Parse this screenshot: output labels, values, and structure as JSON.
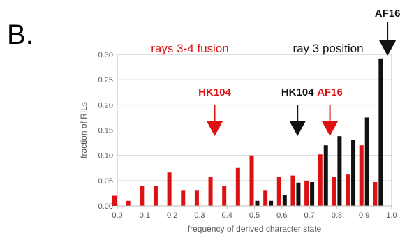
{
  "panel_label": "B.",
  "chart_data": {
    "type": "bar",
    "xlabel": "frequency of derived character state",
    "ylabel": "fraction of RILs",
    "ylim": [
      0,
      0.3
    ],
    "yticks": [
      "0.00",
      "0.05",
      "0.10",
      "0.15",
      "0.20",
      "0.25",
      "0.30"
    ],
    "xlim": [
      0,
      1
    ],
    "xticks": [
      "0.0",
      "0.1",
      "0.2",
      "0.3",
      "0.4",
      "0.5",
      "0.6",
      "0.7",
      "0.8",
      "0.9",
      "1.0"
    ],
    "grid": true,
    "series": [
      {
        "name": "rays 3-4 fusion",
        "color": "#dd1111",
        "x": [
          0.0,
          0.05,
          0.1,
          0.15,
          0.2,
          0.25,
          0.3,
          0.35,
          0.4,
          0.45,
          0.5,
          0.55,
          0.6,
          0.65,
          0.7,
          0.75,
          0.8,
          0.85,
          0.9,
          0.95
        ],
        "values": [
          0.02,
          0.01,
          0.04,
          0.04,
          0.066,
          0.03,
          0.03,
          0.058,
          0.04,
          0.075,
          0.1,
          0.03,
          0.058,
          0.06,
          0.05,
          0.102,
          0.058,
          0.062,
          0.12,
          0.047
        ]
      },
      {
        "name": "ray 3 position",
        "color": "#111111",
        "x": [
          0.5,
          0.55,
          0.6,
          0.65,
          0.7,
          0.75,
          0.8,
          0.85,
          0.9,
          0.95
        ],
        "values": [
          0.01,
          0.01,
          0.021,
          0.046,
          0.047,
          0.12,
          0.138,
          0.13,
          0.175,
          0.292
        ]
      }
    ],
    "annotations": [
      {
        "text": "HK104",
        "x": 0.355,
        "color": "#dd1111"
      },
      {
        "text": "HK104",
        "x": 0.657,
        "color": "#111111"
      },
      {
        "text": "AF16",
        "x": 0.775,
        "color": "#dd1111"
      },
      {
        "text": "AF16",
        "x": 0.985,
        "color": "#111111"
      }
    ]
  }
}
